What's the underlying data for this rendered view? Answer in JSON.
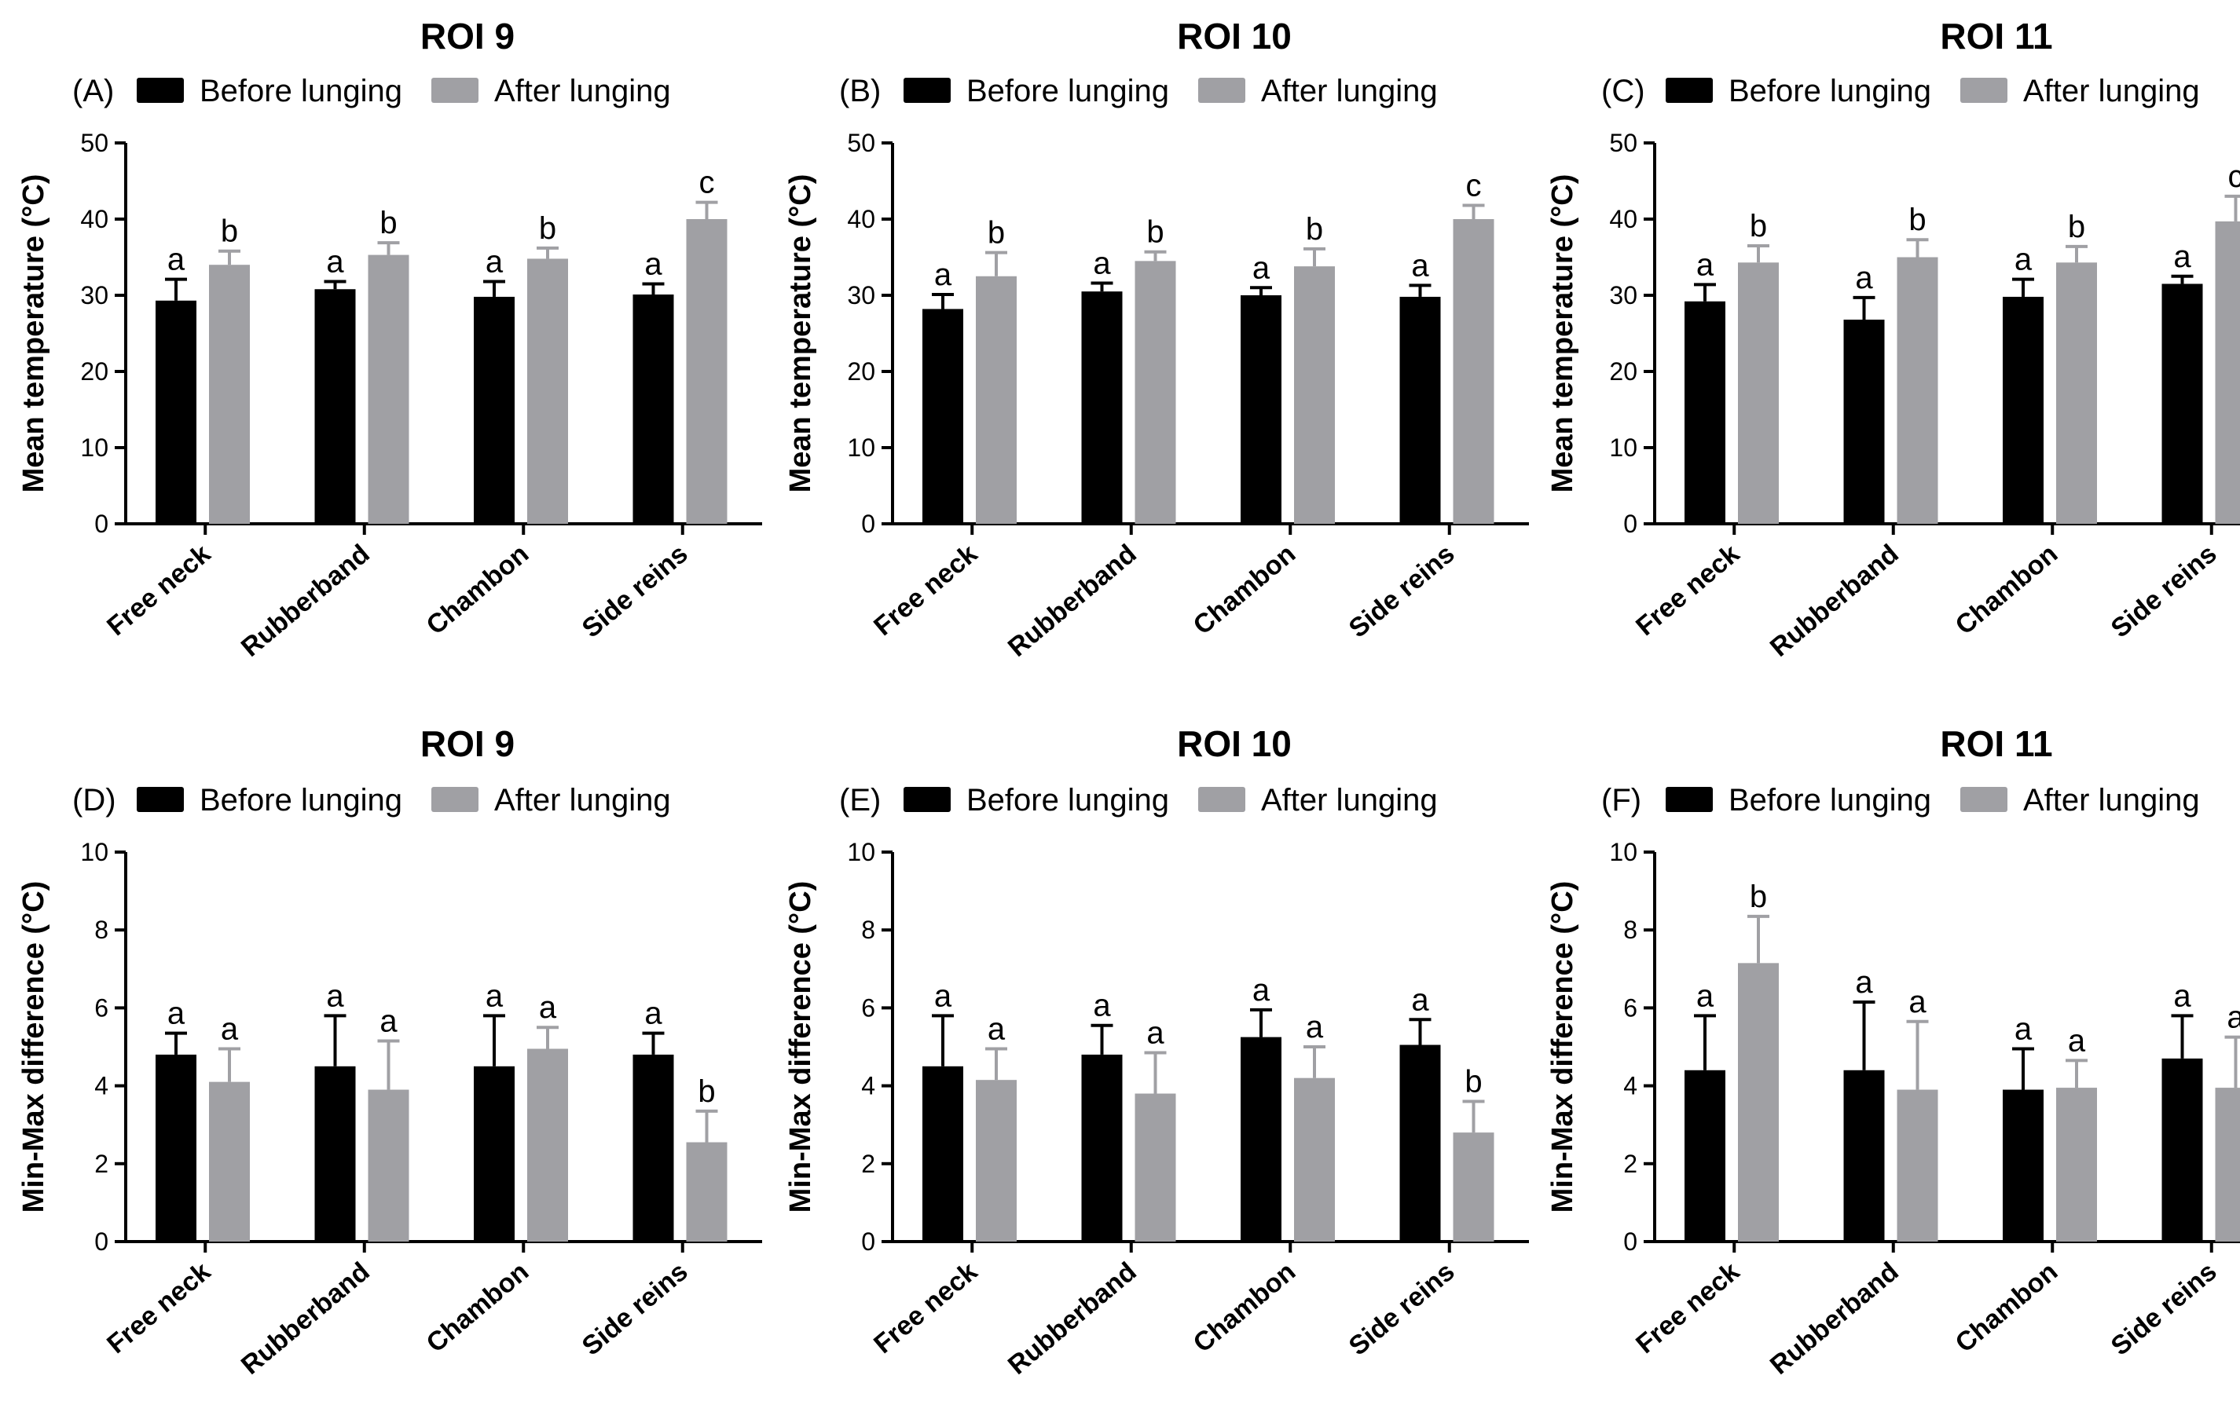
{
  "colors": {
    "before": "#000000",
    "after": "#a0a0a4",
    "axis": "#000000"
  },
  "chart_data": [
    {
      "type": "bar",
      "label": "(A)",
      "title": "ROI 9",
      "ylabel": "Mean temperature  (°C)",
      "ylim": [
        0,
        50
      ],
      "yticks": [
        0,
        10,
        20,
        30,
        40,
        50
      ],
      "categories": [
        "Free neck",
        "Rubberband",
        "Chambon",
        "Side reins"
      ],
      "legend": [
        "Before lunging",
        "After lunging"
      ],
      "series": [
        {
          "name": "Before lunging",
          "values": [
            29.3,
            30.8,
            29.8,
            30.1
          ],
          "errors": [
            2.8,
            1.0,
            2.0,
            1.4
          ],
          "letters": [
            "a",
            "a",
            "a",
            "a"
          ]
        },
        {
          "name": "After lunging",
          "values": [
            34.0,
            35.3,
            34.8,
            40.0
          ],
          "errors": [
            1.8,
            1.6,
            1.4,
            2.2
          ],
          "letters": [
            "b",
            "b",
            "b",
            "c"
          ]
        }
      ]
    },
    {
      "type": "bar",
      "label": "(B)",
      "title": "ROI 10",
      "ylabel": "Mean temperature  (°C)",
      "ylim": [
        0,
        50
      ],
      "yticks": [
        0,
        10,
        20,
        30,
        40,
        50
      ],
      "categories": [
        "Free neck",
        "Rubberband",
        "Chambon",
        "Side reins"
      ],
      "legend": [
        "Before lunging",
        "After lunging"
      ],
      "series": [
        {
          "name": "Before lunging",
          "values": [
            28.2,
            30.5,
            30.0,
            29.8
          ],
          "errors": [
            1.9,
            1.1,
            1.0,
            1.5
          ],
          "letters": [
            "a",
            "a",
            "a",
            "a"
          ]
        },
        {
          "name": "After lunging",
          "values": [
            32.5,
            34.5,
            33.8,
            40.0
          ],
          "errors": [
            3.1,
            1.2,
            2.3,
            1.8
          ],
          "letters": [
            "b",
            "b",
            "b",
            "c"
          ]
        }
      ]
    },
    {
      "type": "bar",
      "label": "(C)",
      "title": "ROI 11",
      "ylabel": "Mean temperature  (°C)",
      "ylim": [
        0,
        50
      ],
      "yticks": [
        0,
        10,
        20,
        30,
        40,
        50
      ],
      "categories": [
        "Free neck",
        "Rubberband",
        "Chambon",
        "Side reins"
      ],
      "legend": [
        "Before lunging",
        "After lunging"
      ],
      "series": [
        {
          "name": "Before lunging",
          "values": [
            29.2,
            26.8,
            29.8,
            31.5
          ],
          "errors": [
            2.2,
            2.9,
            2.3,
            1.0
          ],
          "letters": [
            "a",
            "a",
            "a",
            "a"
          ]
        },
        {
          "name": "After lunging",
          "values": [
            34.3,
            35.0,
            34.3,
            39.7
          ],
          "errors": [
            2.2,
            2.3,
            2.1,
            3.3
          ],
          "letters": [
            "b",
            "b",
            "b",
            "c"
          ]
        }
      ]
    },
    {
      "type": "bar",
      "label": "(D)",
      "title": "ROI 9",
      "ylabel": "Min-Max difference  (°C)",
      "ylim": [
        0,
        10
      ],
      "yticks": [
        0,
        2,
        4,
        6,
        8,
        10
      ],
      "categories": [
        "Free neck",
        "Rubberband",
        "Chambon",
        "Side reins"
      ],
      "legend": [
        "Before lunging",
        "After lunging"
      ],
      "series": [
        {
          "name": "Before lunging",
          "values": [
            4.8,
            4.5,
            4.5,
            4.8
          ],
          "errors": [
            0.55,
            1.3,
            1.3,
            0.55
          ],
          "letters": [
            "a",
            "a",
            "a",
            "a"
          ]
        },
        {
          "name": "After lunging",
          "values": [
            4.1,
            3.9,
            4.95,
            2.55
          ],
          "errors": [
            0.85,
            1.25,
            0.55,
            0.8
          ],
          "letters": [
            "a",
            "a",
            "a",
            "b"
          ]
        }
      ]
    },
    {
      "type": "bar",
      "label": "(E)",
      "title": "ROI 10",
      "ylabel": "Min-Max difference  (°C)",
      "ylim": [
        0,
        10
      ],
      "yticks": [
        0,
        2,
        4,
        6,
        8,
        10
      ],
      "categories": [
        "Free neck",
        "Rubberband",
        "Chambon",
        "Side reins"
      ],
      "legend": [
        "Before lunging",
        "After lunging"
      ],
      "series": [
        {
          "name": "Before lunging",
          "values": [
            4.5,
            4.8,
            5.25,
            5.05
          ],
          "errors": [
            1.3,
            0.75,
            0.7,
            0.65
          ],
          "letters": [
            "a",
            "a",
            "a",
            "a"
          ]
        },
        {
          "name": "After lunging",
          "values": [
            4.15,
            3.8,
            4.2,
            2.8
          ],
          "errors": [
            0.8,
            1.05,
            0.8,
            0.8
          ],
          "letters": [
            "a",
            "a",
            "a",
            "b"
          ]
        }
      ]
    },
    {
      "type": "bar",
      "label": "(F)",
      "title": "ROI 11",
      "ylabel": "Min-Max difference  (°C)",
      "ylim": [
        0,
        10
      ],
      "yticks": [
        0,
        2,
        4,
        6,
        8,
        10
      ],
      "categories": [
        "Free neck",
        "Rubberband",
        "Chambon",
        "Side reins"
      ],
      "legend": [
        "Before lunging",
        "After lunging"
      ],
      "series": [
        {
          "name": "Before lunging",
          "values": [
            4.4,
            4.4,
            3.9,
            4.7
          ],
          "errors": [
            1.4,
            1.75,
            1.05,
            1.1
          ],
          "letters": [
            "a",
            "a",
            "a",
            "a"
          ]
        },
        {
          "name": "After lunging",
          "values": [
            7.15,
            3.9,
            3.95,
            3.95
          ],
          "errors": [
            1.2,
            1.75,
            0.7,
            1.3
          ],
          "letters": [
            "b",
            "a",
            "a",
            "a"
          ]
        }
      ]
    }
  ]
}
